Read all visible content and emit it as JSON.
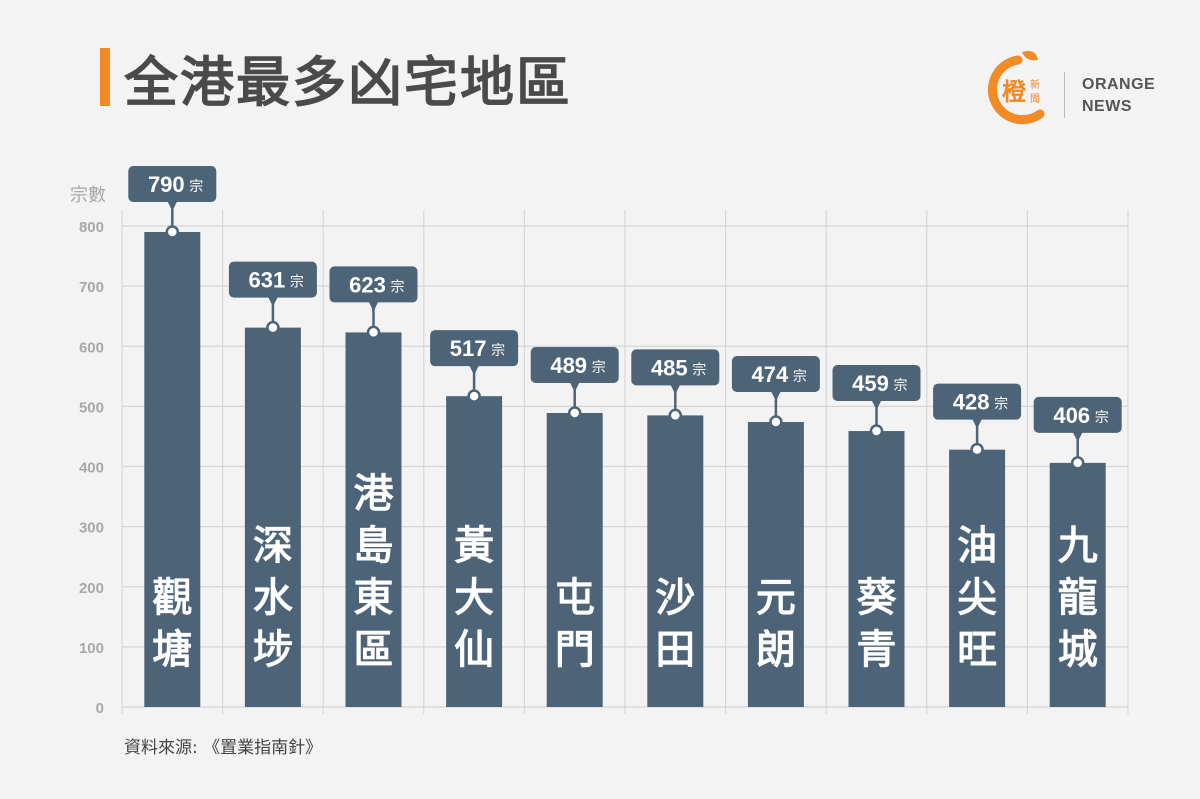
{
  "title": "全港最多凶宅地區",
  "logo": {
    "zh_big": "橙",
    "zh_small_1": "新",
    "zh_small_2": "聞",
    "en_line1": "ORANGE",
    "en_line2": "NEWS",
    "accent_color": "#f28a26"
  },
  "source": "資料來源: 《置業指南針》",
  "colors": {
    "bar": "#4d6478",
    "label_bg": "#4d6478",
    "grid": "#d6d6d6",
    "axis_text": "#a8a8a8"
  },
  "chart_data": {
    "type": "bar",
    "ylabel": "宗數",
    "unit": "宗",
    "ylim": [
      0,
      800
    ],
    "yticks": [
      0,
      100,
      200,
      300,
      400,
      500,
      600,
      700,
      800
    ],
    "grid": true,
    "categories": [
      "觀塘",
      "深水埗",
      "港島東區",
      "黃大仙",
      "屯門",
      "沙田",
      "元朗",
      "葵青",
      "油尖旺",
      "九龍城"
    ],
    "values": [
      790,
      631,
      623,
      517,
      489,
      485,
      474,
      459,
      428,
      406
    ]
  }
}
